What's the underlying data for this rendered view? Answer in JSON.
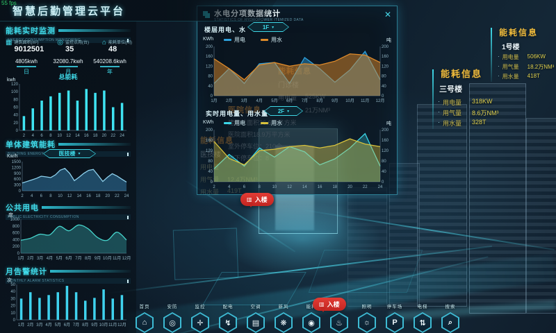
{
  "fps": "55 fps",
  "header": {
    "title": "智慧后勤管理云平台"
  },
  "left": {
    "monitor": {
      "title": "能耗实时监测",
      "subtitle": "ENERGY CONSUMPTION MONITORING"
    },
    "stats": [
      {
        "icon": "building-area-icon",
        "glyph": "▦",
        "label": "建筑面积(m²)",
        "value": "9012501"
      },
      {
        "icon": "monitor-point-icon",
        "glyph": "◎",
        "label": "监控点用(台)",
        "value": "35"
      },
      {
        "icon": "energy-unit-icon",
        "glyph": "⌂",
        "label": "能耗单位(间)",
        "value": "48"
      }
    ],
    "period_totals": [
      {
        "value": "4805kwh",
        "label": "日"
      },
      {
        "value": "32080.7kwh",
        "label": "月"
      },
      {
        "value": "540208.6kwh",
        "label": "年"
      }
    ],
    "total_energy": {
      "title": "总能耗",
      "unit": "kwh"
    },
    "building": {
      "title": "单体建筑能耗",
      "subtitle": "BUILDING ENERGY CONSUMPTION",
      "dropdown": "医技楼",
      "caret": "▾",
      "unit": "Kw/h"
    },
    "public": {
      "title": "公共用电",
      "subtitle": "PUBLIC ELECTRICITY CONSUMPTION",
      "unit": "度"
    },
    "alarm": {
      "title": "月告警统计",
      "subtitle": "MONTHLY ALARM STATISTICS",
      "unit": "次"
    }
  },
  "modal": {
    "title": "水电分项数据统计",
    "subtitle": "STATISTICS OF HYDROPOWER ITEMIZED DATA",
    "close": "✕",
    "floor_section": {
      "label": "楼层用电、水",
      "dropdown": "1F",
      "caret": "▾",
      "unit_left": "KWh",
      "unit_right": "吨",
      "legend": [
        {
          "name": "用电",
          "color": "#2da0dc"
        },
        {
          "name": "用水",
          "color": "#de8a2a"
        }
      ]
    },
    "realtime_section": {
      "label": "实时用电量、用水量",
      "dropdown": "2F",
      "caret": "▾",
      "unit_left": "KWh",
      "unit_right": "吨",
      "legend": [
        {
          "name": "用电",
          "color": "#3bd6e8"
        },
        {
          "name": "用水",
          "color": "#d9c33c"
        }
      ]
    }
  },
  "ghost_labels": [
    {
      "title": "能耗信息",
      "name": "门诊楼",
      "rows": [
        {
          "label": "用电量",
          "value": "525KW"
        },
        {
          "label": "用气量",
          "value": "21万NM³"
        }
      ]
    },
    {
      "title": "医院信息",
      "lines": [
        "建筑总面积36.6万平方米",
        "医院面积18.9万平方米",
        "室外停车位：210个",
        "地下停车位：8"
      ]
    },
    {
      "title": "能耗信息",
      "name": "医技楼",
      "rows": [
        {
          "label": "用电量",
          "value": ""
        },
        {
          "label": "用气量",
          "value": "12.4万NM³"
        },
        {
          "label": "用水量",
          "value": "419T"
        }
      ]
    }
  ],
  "bubbles": [
    {
      "label": "入楼"
    },
    {
      "label": "入楼"
    }
  ],
  "right_panels": [
    {
      "title": "能耗信息",
      "building": "1号楼",
      "rows": [
        {
          "label": "用电量",
          "value": "506KW"
        },
        {
          "label": "用气量",
          "value": "18.2万NM³"
        },
        {
          "label": "用水量",
          "value": "418T"
        }
      ]
    },
    {
      "title": "能耗信息",
      "building": "三号楼",
      "rows": [
        {
          "label": "用电量",
          "value": "318KW"
        },
        {
          "label": "用气量",
          "value": "8.6万NM³"
        },
        {
          "label": "用水量",
          "value": "328T"
        }
      ]
    }
  ],
  "nav": {
    "items": [
      {
        "id": "home",
        "label": "首页",
        "icon": "home-icon",
        "glyph": "⌂"
      },
      {
        "id": "security",
        "label": "安防",
        "icon": "security-camera-icon",
        "glyph": "◎"
      },
      {
        "id": "monitor",
        "label": "监控",
        "icon": "monitor-shield-icon",
        "glyph": "✛"
      },
      {
        "id": "power",
        "label": "配电",
        "icon": "power-bolt-icon",
        "glyph": "↯"
      },
      {
        "id": "hvac",
        "label": "空调",
        "icon": "air-conditioner-icon",
        "glyph": "▤"
      },
      {
        "id": "fresh-air",
        "label": "新风",
        "icon": "fresh-air-fan-icon",
        "glyph": "❋"
      },
      {
        "id": "energy",
        "label": "能耗",
        "icon": "energy-drop-icon",
        "glyph": "◉"
      },
      {
        "id": "fire",
        "label": "消防",
        "icon": "fire-icon",
        "glyph": "♨"
      },
      {
        "id": "lighting",
        "label": "照明",
        "icon": "lighting-icon",
        "glyph": "☼"
      },
      {
        "id": "parking",
        "label": "停车场",
        "icon": "parking-icon",
        "glyph": "P"
      },
      {
        "id": "elevator",
        "label": "电梯",
        "icon": "elevator-icon",
        "glyph": "⇅"
      },
      {
        "id": "search",
        "label": "搜索",
        "icon": "search-icon",
        "glyph": "⌕"
      }
    ]
  },
  "colors": {
    "accent": "#3fd9e8",
    "orange_title": "#f2bd3d",
    "yellow_value": "#ded04f",
    "alert_red": "#d42b2b"
  },
  "chart_data": [
    {
      "type": "bar",
      "title": "总能耗",
      "ylabel": "kwh",
      "categories": [
        "2",
        "4",
        "6",
        "8",
        "10",
        "12",
        "14",
        "16",
        "18",
        "20",
        "22",
        "24"
      ],
      "values": [
        37,
        57,
        77,
        88,
        97,
        103,
        77,
        107,
        97,
        103,
        60,
        71
      ],
      "ylim": [
        0,
        120
      ],
      "ystep": 20,
      "color": "#3fe3f2",
      "padL": 20
    },
    {
      "type": "area",
      "title": "单体建筑能耗",
      "ylabel": "Kw/h",
      "categories": [
        "2",
        "",
        "4",
        "",
        "6",
        "",
        "8",
        "",
        "10",
        "",
        "12",
        "",
        "14",
        "",
        "16",
        "",
        "18",
        "",
        "20",
        "",
        "22",
        "",
        "24"
      ],
      "values": [
        400,
        480,
        560,
        640,
        750,
        720,
        680,
        820,
        1060,
        1150,
        900,
        520,
        700,
        900,
        1050,
        1100,
        800,
        480,
        700,
        880,
        760,
        600,
        450
      ],
      "ylim": [
        0,
        1500
      ],
      "ystep": 300,
      "color": "#8fd2ee",
      "fill": "rgba(58,140,190,0.45)",
      "padL": 24
    },
    {
      "type": "area",
      "smooth": true,
      "title": "公共用电",
      "ylabel": "度",
      "categories": [
        "1月",
        "2月",
        "3月",
        "4月",
        "5月",
        "6月",
        "7月",
        "8月",
        "9月",
        "10月",
        "11月",
        "12月"
      ],
      "values": [
        380,
        440,
        560,
        540,
        790,
        660,
        830,
        720,
        460,
        380,
        620,
        390
      ],
      "ylim": [
        0,
        1000
      ],
      "ystep": 200,
      "color": "#46d4cc",
      "fill": "rgba(52,160,165,0.40)",
      "padL": 22
    },
    {
      "type": "bar",
      "title": "月告警统计",
      "ylabel": "次",
      "categories": [
        "1月",
        "2月",
        "3月",
        "4月",
        "5月",
        "6月",
        "7月",
        "8月",
        "9月",
        "10月",
        "11月",
        "12月"
      ],
      "values": [
        30,
        39,
        31,
        35,
        39,
        48,
        39,
        27,
        31,
        43,
        30,
        35
      ],
      "ylim": [
        0,
        50
      ],
      "ystep": 10,
      "color": "#3fd2ee",
      "padL": 16
    },
    {
      "type": "area",
      "dual": true,
      "title": "楼层用电、水",
      "ylabel_left": "KWh",
      "ylabel_right": "吨",
      "categories": [
        "1月",
        "2月",
        "3月",
        "4月",
        "5月",
        "6月",
        "7月",
        "8月",
        "9月",
        "10月",
        "11月",
        "12月"
      ],
      "series": [
        {
          "name": "用电",
          "color": "#2da0dc",
          "fill": "rgba(45,160,220,0.45)",
          "values": [
            50,
            110,
            50,
            130,
            135,
            50,
            155,
            110,
            55,
            105,
            180,
            65
          ]
        },
        {
          "name": "用水",
          "color": "#de8a2a",
          "fill": "rgba(222,138,42,0.50)",
          "values": [
            150,
            110,
            65,
            125,
            135,
            120,
            130,
            125,
            140,
            170,
            165,
            135
          ]
        }
      ],
      "ylim": [
        0,
        200
      ],
      "ystep": 40,
      "padL": 20
    },
    {
      "type": "area",
      "dual": true,
      "title": "实时用电量、用水量",
      "ylabel_left": "KWh",
      "ylabel_right": "吨",
      "categories": [
        "2",
        "4",
        "6",
        "8",
        "10",
        "12",
        "14",
        "16",
        "18",
        "20",
        "22",
        "24"
      ],
      "series": [
        {
          "name": "用电",
          "color": "#3bd6e8",
          "fill": "rgba(59,214,232,0.28)",
          "values": [
            50,
            105,
            60,
            130,
            95,
            135,
            115,
            65,
            88,
            130,
            185,
            60
          ]
        },
        {
          "name": "用水",
          "color": "#d9c33c",
          "fill": "rgba(217,195,60,0.38)",
          "values": [
            155,
            90,
            65,
            120,
            125,
            135,
            140,
            130,
            140,
            165,
            145,
            135
          ]
        }
      ],
      "ylim": [
        0,
        200
      ],
      "ystep": 40,
      "padL": 20
    }
  ]
}
